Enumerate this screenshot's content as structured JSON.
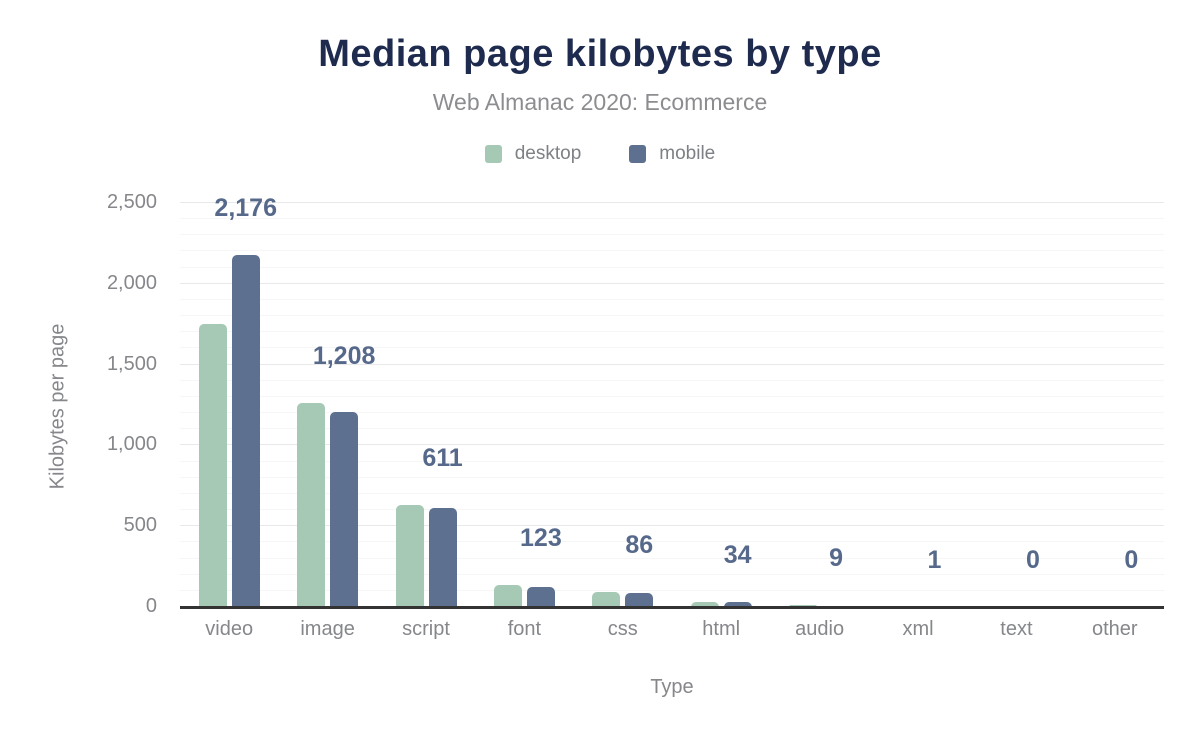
{
  "title": "Median page kilobytes by type",
  "subtitle": "Web Almanac 2020: Ecommerce",
  "legend": [
    {
      "label": "desktop",
      "color": "#a5c9b5"
    },
    {
      "label": "mobile",
      "color": "#5d7090"
    }
  ],
  "colors": {
    "title": "#1e2b4f",
    "muted_text": "#85878b",
    "value_label": "#56698b",
    "axis_line": "#333333",
    "desktop_bar": "#a5c9b5",
    "mobile_bar": "#5d7090"
  },
  "chart_data": {
    "type": "bar",
    "title": "Median page kilobytes by type",
    "subtitle": "Web Almanac 2020: Ecommerce",
    "xlabel": "Type",
    "ylabel": "Kilobytes per page",
    "categories": [
      "video",
      "image",
      "script",
      "font",
      "css",
      "html",
      "audio",
      "xml",
      "text",
      "other"
    ],
    "series": [
      {
        "name": "desktop",
        "color": "#a5c9b5",
        "values": [
          1750,
          1260,
          630,
          137,
          95,
          28,
          15,
          1,
          0,
          0
        ]
      },
      {
        "name": "mobile",
        "color": "#5d7090",
        "values": [
          2176,
          1208,
          611,
          123,
          86,
          34,
          9,
          1,
          0,
          0
        ]
      }
    ],
    "bar_labels": [
      "2,176",
      "1,208",
      "611",
      "123",
      "86",
      "34",
      "9",
      "1",
      "0",
      "0"
    ],
    "bar_labels_series": "mobile",
    "ylim": [
      0,
      2500
    ],
    "ytick_interval": 500,
    "minor_grid_interval": 100,
    "yticks": [
      "0",
      "500",
      "1,000",
      "1,500",
      "2,000",
      "2,500"
    ],
    "grid": true,
    "legend_position": "top"
  }
}
